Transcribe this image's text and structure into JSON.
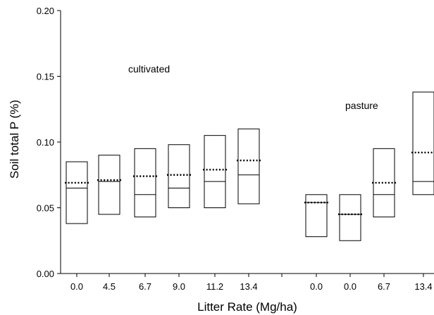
{
  "chart_data": {
    "type": "box",
    "title": "",
    "xlabel": "Litter Rate (Mg/ha)",
    "ylabel": "Soil total P (%)",
    "ylim": [
      0,
      0.2
    ],
    "yticks": [
      "0.00",
      "0.05",
      "0.10",
      "0.15",
      "0.20"
    ],
    "grid": false,
    "mean_marker": "dotted line",
    "groups": [
      {
        "label": "cultivated",
        "categories": [
          "0.0",
          "4.5",
          "6.7",
          "9.0",
          "11.2",
          "13.4"
        ],
        "boxes": [
          {
            "low": 0.038,
            "high": 0.085,
            "median": 0.065,
            "mean": 0.069
          },
          {
            "low": 0.045,
            "high": 0.09,
            "median": 0.07,
            "mean": 0.071
          },
          {
            "low": 0.043,
            "high": 0.095,
            "median": 0.06,
            "mean": 0.074
          },
          {
            "low": 0.05,
            "high": 0.098,
            "median": 0.065,
            "mean": 0.075
          },
          {
            "low": 0.05,
            "high": 0.105,
            "median": 0.07,
            "mean": 0.079
          },
          {
            "low": 0.053,
            "high": 0.11,
            "median": 0.075,
            "mean": 0.086
          }
        ]
      },
      {
        "label": "pasture",
        "categories": [
          "0.0",
          "0.0",
          "6.7",
          "13.4"
        ],
        "boxes": [
          {
            "low": 0.028,
            "high": 0.06,
            "median": 0.054,
            "mean": 0.054
          },
          {
            "low": 0.025,
            "high": 0.06,
            "median": 0.045,
            "mean": 0.045
          },
          {
            "low": 0.043,
            "high": 0.095,
            "median": 0.06,
            "mean": 0.069
          },
          {
            "low": 0.06,
            "high": 0.138,
            "median": 0.07,
            "mean": 0.092
          }
        ]
      }
    ]
  }
}
